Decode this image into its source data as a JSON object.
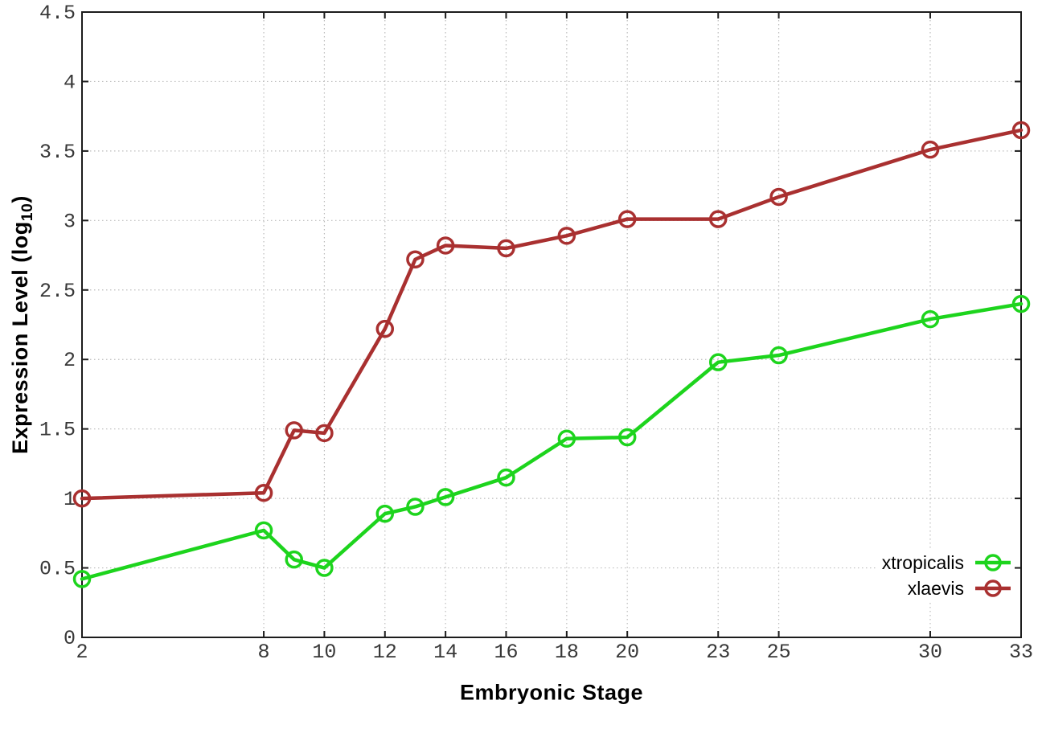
{
  "chart_data": {
    "type": "line",
    "title": "",
    "xlabel": "Embryonic Stage",
    "ylabel": "Expression Level (log10)",
    "ylabel_prefix": "Expression Level (log",
    "ylabel_subscript": "10",
    "ylabel_suffix": ")",
    "marker": "open-circle",
    "grid": true,
    "legend_position": "bottom-right-inside",
    "xlim": [
      2,
      33
    ],
    "ylim": [
      0,
      4.5
    ],
    "x_ticks": [
      2,
      8,
      10,
      12,
      14,
      16,
      18,
      20,
      23,
      25,
      30,
      33
    ],
    "y_ticks": [
      0,
      0.5,
      1,
      1.5,
      2,
      2.5,
      3,
      3.5,
      4,
      4.5
    ],
    "x": [
      2,
      8,
      9,
      10,
      12,
      13,
      14,
      16,
      18,
      20,
      23,
      25,
      30,
      33
    ],
    "series": [
      {
        "name": "xtropicalis",
        "color": "#1dd41d",
        "values": [
          0.42,
          0.77,
          0.56,
          0.5,
          0.89,
          0.94,
          1.01,
          1.15,
          1.43,
          1.44,
          1.98,
          2.03,
          2.29,
          2.4
        ]
      },
      {
        "name": "xlaevis",
        "color": "#a93030",
        "values": [
          1.0,
          1.04,
          1.49,
          1.47,
          2.22,
          2.72,
          2.82,
          2.8,
          2.89,
          3.01,
          3.01,
          3.17,
          3.51,
          3.65
        ]
      }
    ],
    "axis_color": "#1c1c1c",
    "grid_color": "#bcbcbc"
  }
}
